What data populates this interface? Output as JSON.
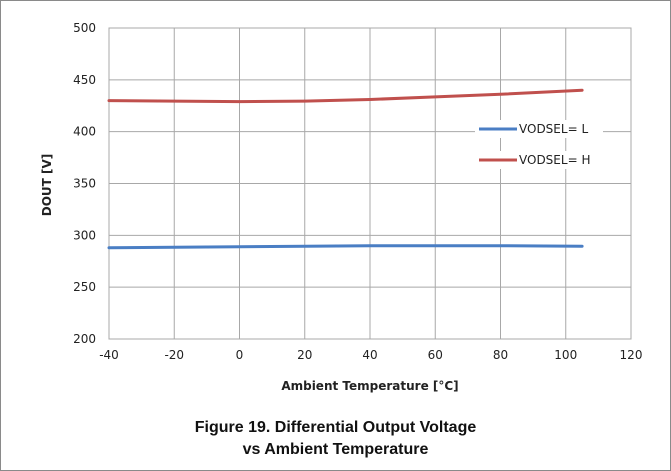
{
  "chart_data": {
    "type": "line",
    "xlabel": "Ambient Temperature [°C]",
    "ylabel": "DOUT  [V]",
    "xlim": [
      -40,
      120
    ],
    "ylim": [
      200,
      500
    ],
    "x_ticks": [
      "-40",
      "-20",
      "0",
      "20",
      "40",
      "60",
      "80",
      "100",
      "120"
    ],
    "y_ticks": [
      "200",
      "250",
      "300",
      "350",
      "400",
      "450",
      "500"
    ],
    "grid": true,
    "legend_position": "right",
    "series": [
      {
        "name": "VODSEL= L",
        "color": "#4a7ec4",
        "x": [
          -40,
          -20,
          0,
          20,
          40,
          60,
          80,
          105
        ],
        "y": [
          288,
          288.5,
          289,
          289.5,
          290,
          290,
          290,
          289.5
        ]
      },
      {
        "name": "VODSEL= H",
        "color": "#c0504d",
        "x": [
          -40,
          -20,
          0,
          20,
          40,
          60,
          80,
          105
        ],
        "y": [
          430,
          429.5,
          429,
          429.5,
          431,
          433.5,
          436,
          440
        ]
      }
    ]
  },
  "caption": {
    "line1": "Figure 19. Differential Output Voltage",
    "line2": "vs Ambient Temperature"
  }
}
